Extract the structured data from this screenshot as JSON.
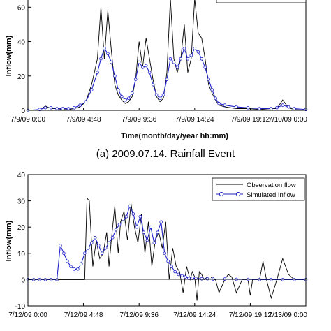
{
  "chart_data": [
    {
      "type": "line",
      "caption": "(a) 2009.07.14. Rainfall Event",
      "xlabel": "Time(month/day/year hh:mm)",
      "ylabel": "Inflow(mm)",
      "x_tick_labels": [
        "7/9/09 0:00",
        "7/9/09 4:48",
        "7/9/09 9:36",
        "7/9/09 14:24",
        "7/9/09 19:12",
        "7/10/09 0:00"
      ],
      "x_range_hours": [
        0,
        24
      ],
      "ylim": [
        0,
        65
      ],
      "y_ticks": [
        0,
        20,
        40,
        60
      ],
      "grid": false,
      "legend": "top-right",
      "series": [
        {
          "name": "",
          "color": "#000000",
          "marker": "none",
          "x_hours": [
            0,
            1,
            1.5,
            2,
            2.5,
            3,
            3.5,
            4,
            4.5,
            5,
            5.5,
            6,
            6.3,
            6.6,
            6.9,
            7.2,
            7.5,
            7.8,
            8.1,
            8.4,
            8.7,
            9.0,
            9.3,
            9.6,
            9.9,
            10.2,
            10.5,
            10.8,
            11.1,
            11.4,
            11.7,
            12.0,
            12.3,
            12.6,
            12.9,
            13.2,
            13.5,
            13.8,
            14.1,
            14.4,
            14.7,
            15.0,
            15.3,
            15.6,
            15.9,
            16.2,
            16.5,
            17,
            18,
            19,
            20,
            21,
            21.5,
            22,
            22.5,
            23,
            24
          ],
          "values": [
            0,
            0,
            2.5,
            1,
            1,
            0.5,
            0.5,
            1,
            2,
            5,
            15,
            30,
            60,
            30,
            58,
            35,
            15,
            9,
            6,
            4,
            5,
            8,
            18,
            40,
            25,
            42,
            30,
            18,
            8,
            5,
            7,
            22,
            65,
            30,
            22,
            30,
            50,
            22,
            30,
            65,
            45,
            42,
            30,
            15,
            10,
            6,
            3,
            2,
            1,
            1,
            0.5,
            1,
            1,
            6,
            1.5,
            0.5,
            0
          ]
        },
        {
          "name": "",
          "color": "#1f24c8",
          "marker": "circle",
          "x_hours": [
            0,
            1,
            1.5,
            2,
            2.5,
            3,
            3.5,
            4,
            4.5,
            5,
            5.5,
            6,
            6.3,
            6.6,
            6.9,
            7.2,
            7.5,
            7.8,
            8.1,
            8.4,
            8.7,
            9.0,
            9.3,
            9.6,
            9.9,
            10.2,
            10.5,
            10.8,
            11.1,
            11.4,
            11.7,
            12.0,
            12.3,
            12.6,
            12.9,
            13.2,
            13.5,
            13.8,
            14.1,
            14.4,
            14.7,
            15.0,
            15.3,
            15.6,
            15.9,
            16.2,
            16.5,
            17,
            18,
            19,
            20,
            21,
            21.5,
            22,
            22.5,
            23,
            24
          ],
          "values": [
            0,
            0.5,
            1.5,
            1.5,
            1,
            1,
            1,
            1.5,
            3,
            5,
            12,
            22,
            30,
            36,
            33,
            28,
            20,
            12,
            8,
            6,
            7,
            10,
            18,
            28,
            25,
            26,
            22,
            15,
            9,
            7,
            9,
            18,
            30,
            28,
            25,
            30,
            36,
            30,
            32,
            36,
            34,
            30,
            25,
            18,
            12,
            7,
            4,
            3,
            2,
            1.5,
            1,
            1,
            1.5,
            3,
            2,
            1,
            0.5
          ]
        }
      ]
    },
    {
      "type": "line",
      "caption": "",
      "xlabel": "",
      "ylabel": "Inflow(mm)",
      "x_tick_labels": [
        "7/12/09 0:00",
        "7/12/09 4:48",
        "7/12/09 9:36",
        "7/12/09 14:24",
        "7/12/09 19:12",
        "7/13/09 0:00"
      ],
      "x_range_hours": [
        0,
        24
      ],
      "ylim": [
        -10,
        40
      ],
      "y_ticks": [
        -10,
        0,
        10,
        20,
        30,
        40
      ],
      "grid": false,
      "legend": "top-right",
      "series": [
        {
          "name": "Observation flow",
          "color": "#000000",
          "marker": "none",
          "x_hours": [
            0,
            2.5,
            3,
            4.9,
            5.1,
            5.3,
            5.6,
            5.9,
            6.2,
            6.5,
            6.8,
            7.0,
            7.2,
            7.5,
            7.8,
            8.0,
            8.3,
            8.6,
            8.9,
            9.2,
            9.5,
            9.8,
            10.1,
            10.4,
            10.7,
            11.0,
            11.3,
            11.6,
            11.9,
            12.2,
            12.5,
            12.8,
            13.1,
            13.4,
            13.7,
            14.0,
            14.2,
            14.4,
            14.6,
            14.8,
            15.0,
            15.2,
            15.5,
            15.8,
            16.0,
            16.2,
            16.5,
            17.0,
            17.3,
            17.6,
            18.0,
            18.5,
            19.0,
            19.2,
            19.4,
            19.6,
            20.0,
            20.3,
            20.6,
            21.0,
            21.5,
            22,
            22.5,
            23,
            24
          ],
          "values": [
            0,
            0,
            0,
            0,
            31,
            30,
            5,
            15,
            8,
            10,
            18,
            5,
            15,
            28,
            10,
            22,
            26,
            15,
            29,
            20,
            14,
            25,
            10,
            22,
            5,
            15,
            18,
            12,
            22,
            0,
            12,
            5,
            3,
            -5,
            5,
            0,
            3,
            1,
            -8,
            3,
            2,
            0,
            1,
            1,
            0,
            0,
            -5,
            0,
            2,
            1,
            -5,
            0,
            0,
            -6,
            0,
            0,
            0,
            7,
            0,
            -7,
            0,
            8,
            2,
            0,
            0
          ]
        },
        {
          "name": "Simulated Inflow",
          "color": "#1f24c8",
          "marker": "circle",
          "x_hours": [
            0,
            0.5,
            1,
            1.5,
            2,
            2.5,
            2.8,
            3.1,
            3.4,
            3.7,
            4.0,
            4.3,
            4.6,
            4.9,
            5.2,
            5.5,
            5.8,
            6.1,
            6.4,
            6.7,
            7.0,
            7.3,
            7.6,
            7.9,
            8.2,
            8.5,
            8.8,
            9.1,
            9.4,
            9.7,
            10.0,
            10.3,
            10.6,
            10.9,
            11.2,
            11.5,
            11.8,
            12.1,
            12.4,
            12.7,
            13.0,
            13.3,
            13.6,
            13.9,
            14.2,
            14.5,
            15.0,
            15.5,
            16.0,
            17.0,
            18.0,
            19.0,
            20.0,
            21.0,
            22.0,
            23.0,
            24.0
          ],
          "values": [
            0,
            0,
            0,
            0,
            0,
            0,
            13,
            10,
            7,
            5,
            4,
            4,
            6,
            10,
            12,
            14,
            16,
            13,
            10,
            12,
            14,
            16,
            19,
            21,
            22,
            24,
            28,
            25,
            20,
            24,
            18,
            15,
            20,
            14,
            18,
            22,
            10,
            7,
            5,
            3,
            2,
            1.5,
            1,
            0.5,
            0.5,
            0.5,
            0.3,
            0.3,
            0.2,
            0.2,
            0.1,
            0.1,
            0,
            0,
            0,
            0,
            0
          ]
        }
      ]
    }
  ]
}
